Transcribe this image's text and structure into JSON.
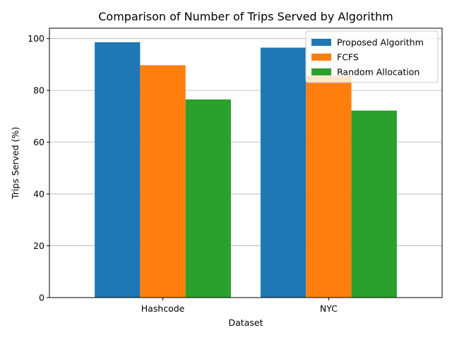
{
  "chart_data": {
    "type": "bar",
    "title": "Comparison of Number of Trips Served by Algorithm",
    "xlabel": "Dataset",
    "ylabel": "Trips Served (%)",
    "categories": [
      "Hashcode",
      "NYC"
    ],
    "series": [
      {
        "name": "Proposed Algorithm",
        "values": [
          98.6,
          96.5
        ],
        "color": "#1f77b4"
      },
      {
        "name": "FCFS",
        "values": [
          89.7,
          85.6
        ],
        "color": "#ff7f0e"
      },
      {
        "name": "Random Allocation",
        "values": [
          76.5,
          72.2
        ],
        "color": "#2ca02c"
      }
    ],
    "ylim": [
      0,
      104
    ],
    "yticks": [
      0,
      20,
      40,
      60,
      80,
      100
    ],
    "grid": "y",
    "legend_position": "top-right"
  }
}
